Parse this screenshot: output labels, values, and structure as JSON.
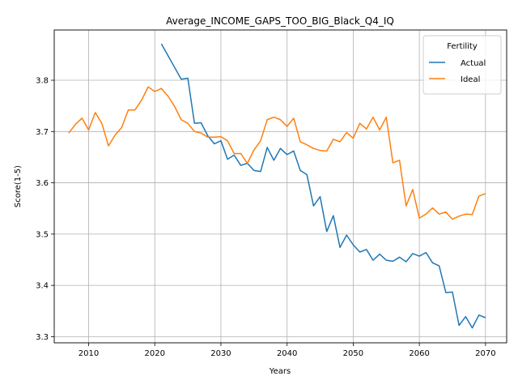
{
  "chart_data": {
    "type": "line",
    "title": "Average_INCOME_GAPS_TOO_BIG_Black_Q4_IQ",
    "xlabel": "Years",
    "ylabel": "Score(1-5)",
    "xlim": [
      2004.8,
      2073.2
    ],
    "ylim": [
      3.288,
      3.898
    ],
    "xticks": [
      2010,
      2020,
      2030,
      2040,
      2050,
      2060,
      2070
    ],
    "xtick_labels": [
      "2010",
      "2020",
      "2030",
      "2040",
      "2050",
      "2060",
      "2070"
    ],
    "yticks": [
      3.3,
      3.4,
      3.5,
      3.6,
      3.7,
      3.8
    ],
    "ytick_labels": [
      "3.3",
      "3.4",
      "3.5",
      "3.6",
      "3.7",
      "3.8"
    ],
    "grid": true,
    "legend": {
      "title": "Fertility",
      "position": "top-right"
    },
    "series": [
      {
        "name": "Actual",
        "color": "#1f77b4",
        "x": [
          2021,
          2022,
          2023,
          2024,
          2025,
          2026,
          2027,
          2028,
          2029,
          2030,
          2031,
          2032,
          2033,
          2034,
          2035,
          2036,
          2037,
          2038,
          2039,
          2040,
          2041,
          2042,
          2043,
          2044,
          2045,
          2046,
          2047,
          2048,
          2049,
          2050,
          2051,
          2052,
          2053,
          2054,
          2055,
          2056,
          2057,
          2058,
          2059,
          2060,
          2061,
          2062,
          2063,
          2064,
          2065,
          2066,
          2067,
          2068,
          2069,
          2070
        ],
        "y": [
          3.871,
          3.848,
          3.825,
          3.802,
          3.804,
          3.716,
          3.717,
          3.692,
          3.676,
          3.682,
          3.646,
          3.654,
          3.634,
          3.638,
          3.624,
          3.622,
          3.669,
          3.644,
          3.667,
          3.655,
          3.662,
          3.624,
          3.616,
          3.555,
          3.573,
          3.505,
          3.536,
          3.474,
          3.498,
          3.479,
          3.465,
          3.47,
          3.449,
          3.461,
          3.449,
          3.447,
          3.455,
          3.446,
          3.462,
          3.457,
          3.464,
          3.444,
          3.438,
          3.386,
          3.387,
          3.322,
          3.339,
          3.317,
          3.342,
          3.337
        ]
      },
      {
        "name": "Ideal",
        "color": "#ff7f0e",
        "x": [
          2007,
          2008,
          2009,
          2010,
          2011,
          2012,
          2013,
          2014,
          2015,
          2016,
          2017,
          2018,
          2019,
          2020,
          2021,
          2022,
          2023,
          2024,
          2025,
          2026,
          2027,
          2028,
          2029,
          2030,
          2031,
          2032,
          2033,
          2034,
          2035,
          2036,
          2037,
          2038,
          2039,
          2040,
          2041,
          2042,
          2043,
          2044,
          2045,
          2046,
          2047,
          2048,
          2049,
          2050,
          2051,
          2052,
          2053,
          2054,
          2055,
          2056,
          2057,
          2058,
          2059,
          2060,
          2061,
          2062,
          2063,
          2064,
          2065,
          2066,
          2067,
          2068,
          2069,
          2070
        ],
        "y": [
          3.697,
          3.714,
          3.726,
          3.703,
          3.737,
          3.716,
          3.672,
          3.693,
          3.708,
          3.742,
          3.742,
          3.761,
          3.787,
          3.778,
          3.784,
          3.769,
          3.749,
          3.723,
          3.716,
          3.7,
          3.697,
          3.689,
          3.689,
          3.69,
          3.682,
          3.657,
          3.657,
          3.638,
          3.664,
          3.682,
          3.723,
          3.728,
          3.723,
          3.71,
          3.726,
          3.68,
          3.674,
          3.667,
          3.663,
          3.662,
          3.685,
          3.68,
          3.698,
          3.687,
          3.716,
          3.705,
          3.728,
          3.703,
          3.728,
          3.639,
          3.644,
          3.555,
          3.587,
          3.531,
          3.539,
          3.551,
          3.539,
          3.543,
          3.529,
          3.535,
          3.539,
          3.538,
          3.574,
          3.579
        ]
      }
    ]
  }
}
